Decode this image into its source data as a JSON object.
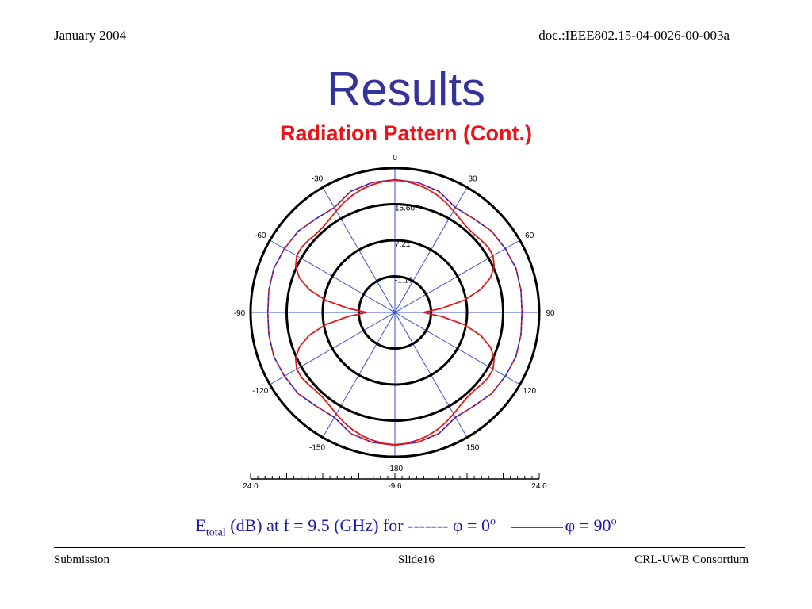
{
  "header": {
    "date": "January 2004",
    "doc_id": "doc.:IEEE802.15-04-0026-00-003a"
  },
  "slide": {
    "title": "Results",
    "subtitle": "Radiation Pattern (Cont.)"
  },
  "caption": {
    "e_symbol": "E",
    "e_subscript": "total",
    "text": " (dB) at f = 9.5 (GHz) for ",
    "dash_legend": "-------",
    "phi0": " φ = 0",
    "phi90": "φ = 90",
    "degree_mark": "o"
  },
  "footer": {
    "left": "Submission",
    "center": "Slide16",
    "right": "CRL-UWB Consortium"
  },
  "colors": {
    "title": "#333399",
    "subtitle": "#e8161b",
    "spokes": "#3a4fd6",
    "label_blue": "#2030b0",
    "phi0_dash": "#2a2ad0",
    "phi90": "#e01818",
    "caption": "#1a1aa6"
  },
  "chart_data": {
    "type": "polar",
    "angle_labels": [
      "0",
      "30",
      "60",
      "90",
      "120",
      "150",
      "-180",
      "-150",
      "-120",
      "-90",
      "-60",
      "-30"
    ],
    "ring_labels": [
      "15.60",
      "7.21",
      "-1.19"
    ],
    "scale_labels": [
      "24.0",
      "-9.6",
      "24.0"
    ],
    "rlim": [
      -9.6,
      24.0
    ],
    "series": [
      {
        "name": "φ = 0",
        "style": "dashed",
        "theta_deg": [
          0,
          10,
          20,
          30,
          40,
          50,
          60,
          70,
          80,
          90,
          100,
          110,
          120,
          130,
          140,
          150,
          160,
          170,
          180
        ],
        "r_db": [
          21.3,
          21.1,
          20.4,
          18.6,
          18.9,
          19.8,
          20.1,
          20.4,
          20.2,
          20.0,
          20.2,
          20.4,
          20.1,
          19.8,
          18.9,
          18.6,
          20.4,
          21.1,
          21.3
        ]
      },
      {
        "name": "φ = 90",
        "style": "solid",
        "theta_deg": [
          0,
          5,
          10,
          15,
          20,
          25,
          30,
          35,
          40,
          45,
          50,
          55,
          60,
          65,
          70,
          75,
          80,
          85,
          90,
          95,
          100,
          105,
          110,
          115,
          120,
          125,
          130,
          135,
          140,
          145,
          150,
          155,
          160,
          165,
          170,
          175,
          180
        ],
        "r_db": [
          21.2,
          21.0,
          20.6,
          20.1,
          19.4,
          18.6,
          17.7,
          16.9,
          16.4,
          16.3,
          16.6,
          16.9,
          16.8,
          15.9,
          14.1,
          11.1,
          6.8,
          1.3,
          -3.0,
          1.3,
          6.8,
          11.1,
          14.1,
          15.9,
          16.8,
          16.9,
          16.6,
          16.3,
          16.4,
          16.9,
          17.7,
          18.6,
          19.4,
          20.1,
          20.6,
          21.0,
          21.2
        ]
      }
    ]
  }
}
